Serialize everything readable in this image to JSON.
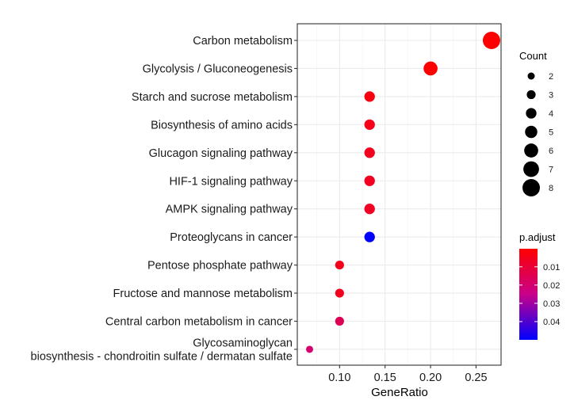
{
  "chart_data": {
    "type": "scatter",
    "subtype": "dotplot",
    "xlabel": "GeneRatio",
    "ylabel": "",
    "xlim": [
      0.0535,
      0.2775
    ],
    "xticks": [
      0.1,
      0.15,
      0.2,
      0.25
    ],
    "xtick_labels": [
      "0.10",
      "0.15",
      "0.20",
      "0.25"
    ],
    "grid": true,
    "points": [
      {
        "term": "Carbon metabolism",
        "gene_ratio": 0.267,
        "count": 8,
        "p_adjust": 0.0001
      },
      {
        "term": "Glycolysis / Gluconeogenesis",
        "gene_ratio": 0.2,
        "count": 6,
        "p_adjust": 0.0003
      },
      {
        "term": "Starch and sucrose metabolism",
        "gene_ratio": 0.133,
        "count": 4,
        "p_adjust": 0.003
      },
      {
        "term": "Biosynthesis of amino acids",
        "gene_ratio": 0.133,
        "count": 4,
        "p_adjust": 0.0045
      },
      {
        "term": "Glucagon signaling pathway",
        "gene_ratio": 0.133,
        "count": 4,
        "p_adjust": 0.0055
      },
      {
        "term": "HIF-1 signaling pathway",
        "gene_ratio": 0.133,
        "count": 4,
        "p_adjust": 0.006
      },
      {
        "term": "AMPK signaling pathway",
        "gene_ratio": 0.133,
        "count": 4,
        "p_adjust": 0.0065
      },
      {
        "term": "Proteoglycans in cancer",
        "gene_ratio": 0.133,
        "count": 4,
        "p_adjust": 0.05
      },
      {
        "term": "Pentose phosphate pathway",
        "gene_ratio": 0.1,
        "count": 3,
        "p_adjust": 0.005
      },
      {
        "term": "Fructose and mannose metabolism",
        "gene_ratio": 0.1,
        "count": 3,
        "p_adjust": 0.0055
      },
      {
        "term": "Central carbon metabolism in cancer",
        "gene_ratio": 0.1,
        "count": 3,
        "p_adjust": 0.015
      },
      {
        "term": "Glycosaminoglycan\nbiosynthesis - chondroitin sulfate / dermatan sulfate",
        "gene_ratio": 0.067,
        "count": 2,
        "p_adjust": 0.02
      }
    ],
    "legend": {
      "size": {
        "title": "Count",
        "values": [
          2,
          3,
          4,
          5,
          6,
          7,
          8
        ],
        "labels": [
          "2",
          "3",
          "4",
          "5",
          "6",
          "7",
          "8"
        ]
      },
      "color": {
        "title": "p.adjust",
        "low_color": "#ff0000",
        "high_color": "#0000ff",
        "range": [
          0.0001,
          0.05
        ],
        "ticks": [
          0.01,
          0.02,
          0.03,
          0.04
        ],
        "tick_labels": [
          "0.01",
          "0.02",
          "0.03",
          "0.04"
        ]
      },
      "position": "right"
    }
  }
}
